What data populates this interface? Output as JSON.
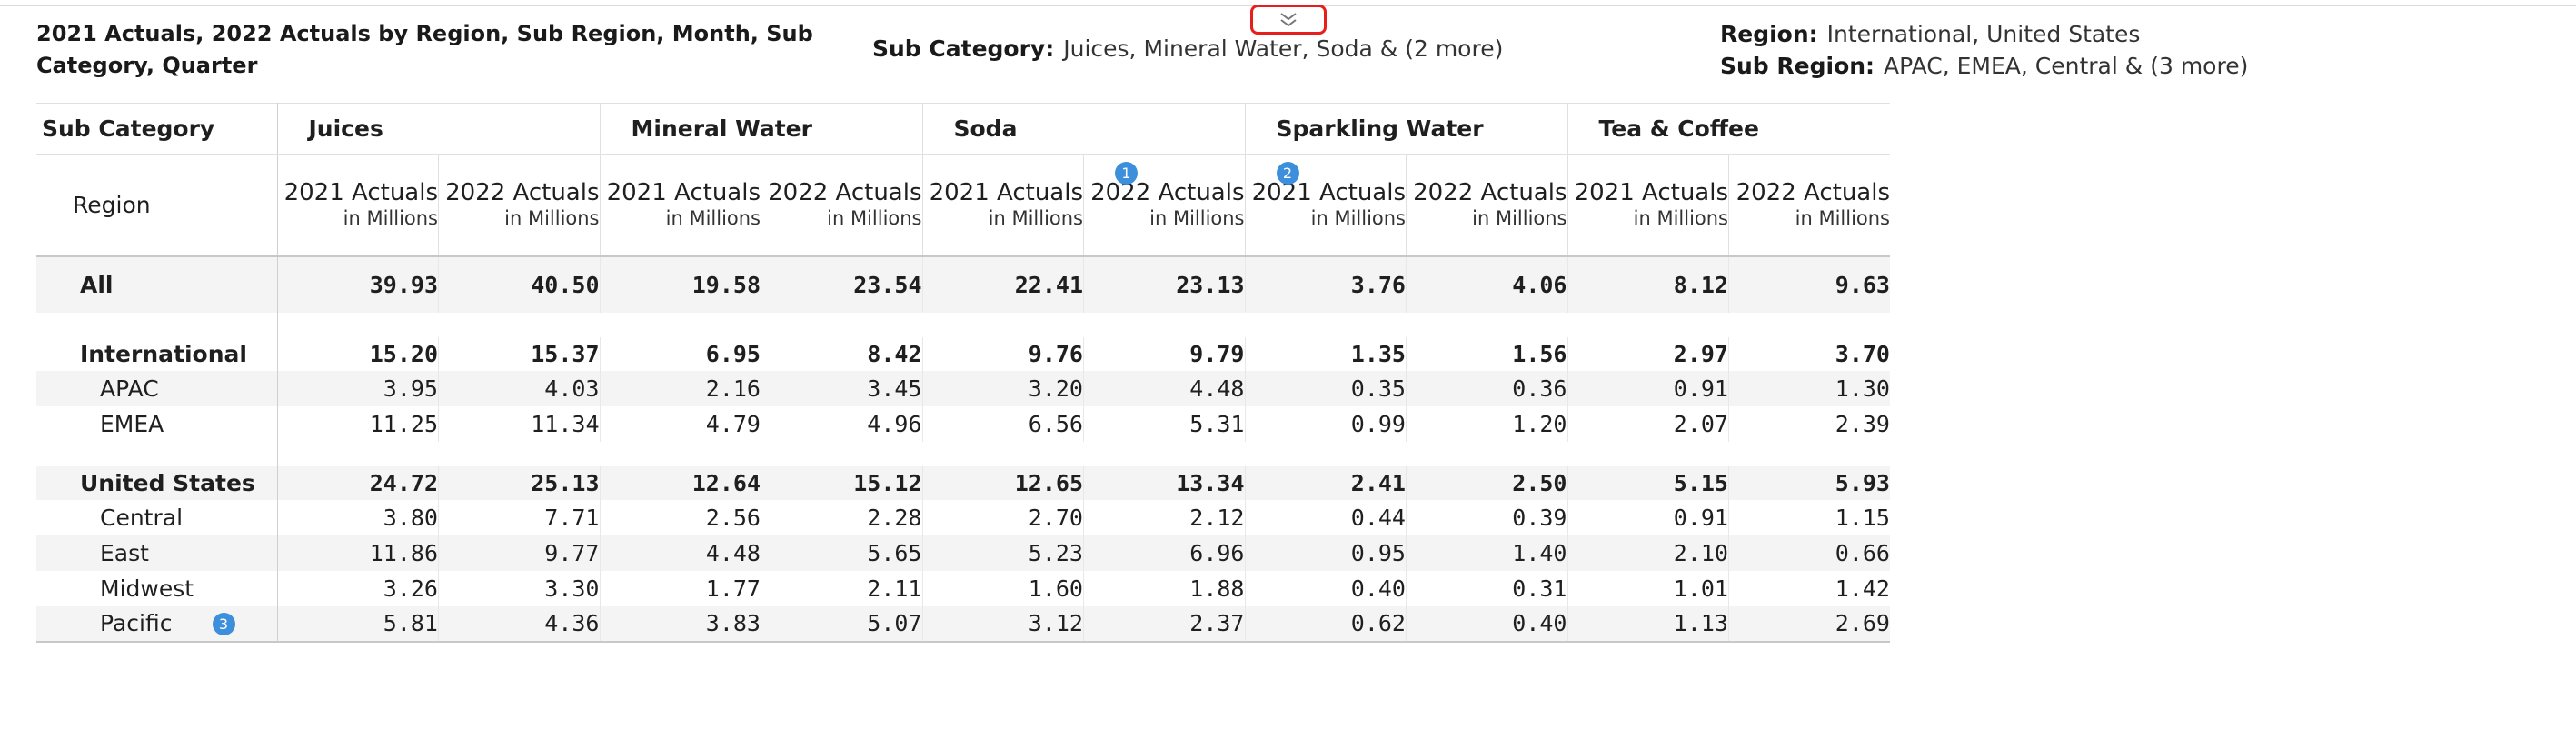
{
  "header": {
    "title": "2021 Actuals, 2022 Actuals by Region, Sub Region, Month, Sub Category, Quarter"
  },
  "filters": {
    "sub_category": {
      "key": "Sub Category:",
      "value": "Juices, Mineral Water, Soda & (2 more)"
    },
    "region": {
      "key": "Region:",
      "value": "International, United States"
    },
    "sub_region": {
      "key": "Sub Region:",
      "value": "APAC, EMEA, Central & (3 more)"
    }
  },
  "table": {
    "corner_col": "Sub Category",
    "corner_row": "Region",
    "categories": [
      "Juices",
      "Mineral Water",
      "Soda",
      "Sparkling Water",
      "Tea & Coffee"
    ],
    "measures": [
      {
        "name": "2021 Actuals",
        "unit": "in Millions"
      },
      {
        "name": "2022 Actuals",
        "unit": "in Millions"
      }
    ],
    "badges": {
      "b1": "1",
      "b2": "2",
      "b3": "3"
    },
    "rows": {
      "all": {
        "label": "All",
        "values": [
          "39.93",
          "40.50",
          "19.58",
          "23.54",
          "22.41",
          "23.13",
          "3.76",
          "4.06",
          "8.12",
          "9.63"
        ]
      },
      "international": {
        "label": "International",
        "values": [
          "15.20",
          "15.37",
          "6.95",
          "8.42",
          "9.76",
          "9.79",
          "1.35",
          "1.56",
          "2.97",
          "3.70"
        ]
      },
      "apac": {
        "label": "APAC",
        "values": [
          "3.95",
          "4.03",
          "2.16",
          "3.45",
          "3.20",
          "4.48",
          "0.35",
          "0.36",
          "0.91",
          "1.30"
        ]
      },
      "emea": {
        "label": "EMEA",
        "values": [
          "11.25",
          "11.34",
          "4.79",
          "4.96",
          "6.56",
          "5.31",
          "0.99",
          "1.20",
          "2.07",
          "2.39"
        ]
      },
      "united_states": {
        "label": "United States",
        "values": [
          "24.72",
          "25.13",
          "12.64",
          "15.12",
          "12.65",
          "13.34",
          "2.41",
          "2.50",
          "5.15",
          "5.93"
        ]
      },
      "central": {
        "label": "Central",
        "values": [
          "3.80",
          "7.71",
          "2.56",
          "2.28",
          "2.70",
          "2.12",
          "0.44",
          "0.39",
          "0.91",
          "1.15"
        ]
      },
      "east": {
        "label": "East",
        "values": [
          "11.86",
          "9.77",
          "4.48",
          "5.65",
          "5.23",
          "6.96",
          "0.95",
          "1.40",
          "2.10",
          "0.66"
        ]
      },
      "midwest": {
        "label": "Midwest",
        "values": [
          "3.26",
          "3.30",
          "1.77",
          "2.11",
          "1.60",
          "1.88",
          "0.40",
          "0.31",
          "1.01",
          "1.42"
        ]
      },
      "pacific": {
        "label": "Pacific",
        "values": [
          "5.81",
          "4.36",
          "3.83",
          "5.07",
          "3.12",
          "2.37",
          "0.62",
          "0.40",
          "1.13",
          "2.69"
        ]
      }
    }
  },
  "icons": {
    "collapse": "chevron-double-down-icon"
  },
  "colors": {
    "badge": "#3d8fdb",
    "highlight": "#e81e1e",
    "zebra": "#f4f4f4"
  }
}
